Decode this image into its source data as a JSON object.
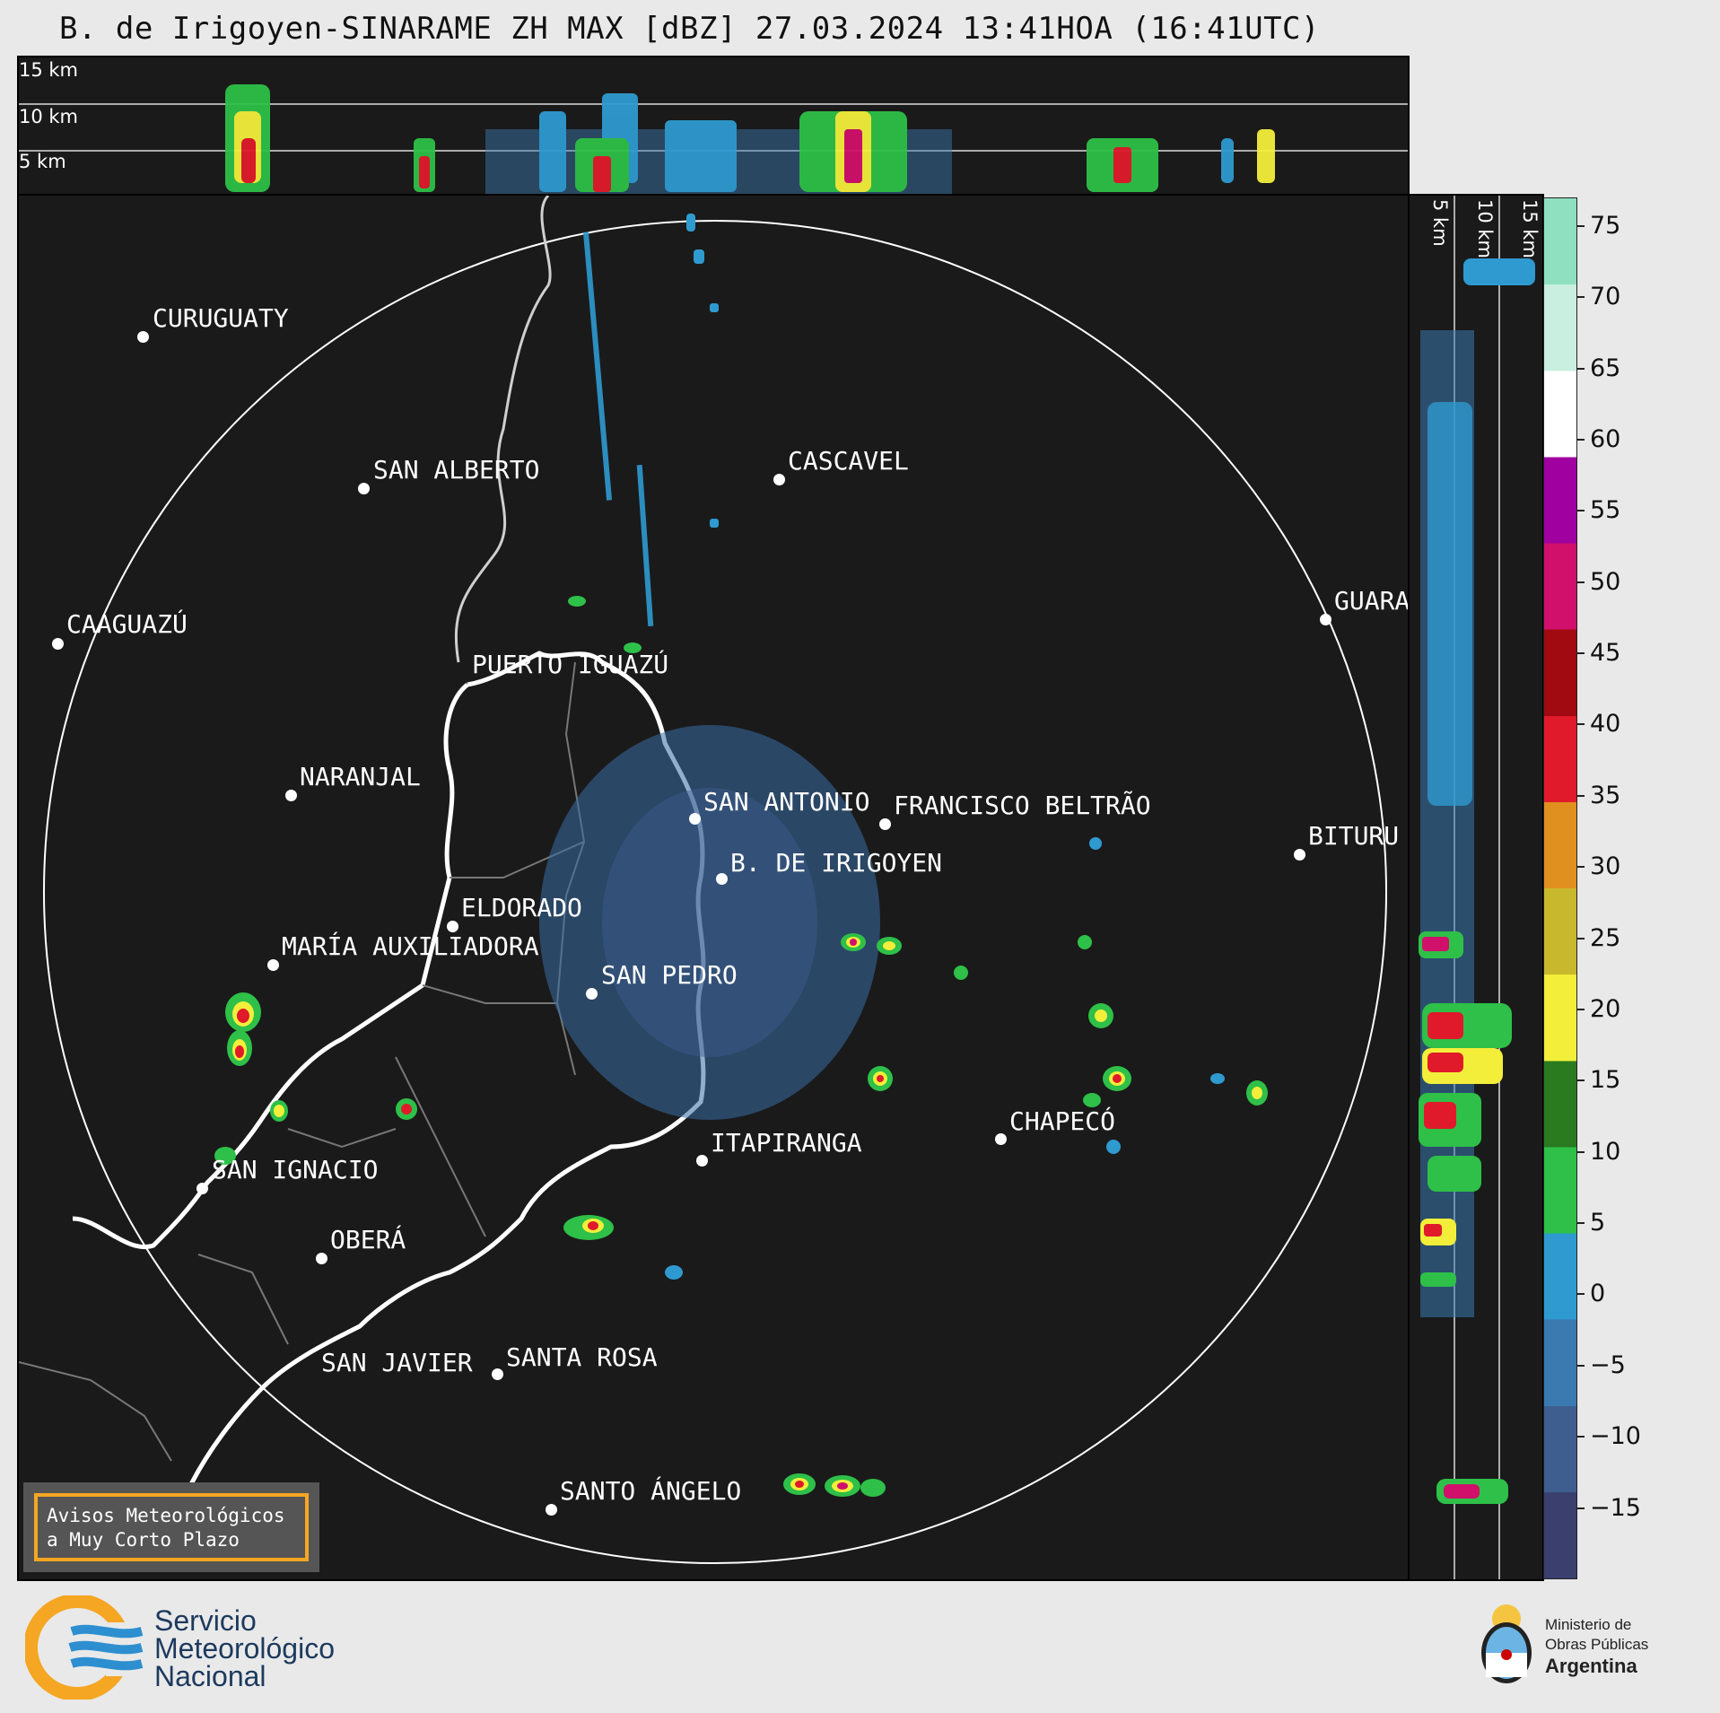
{
  "title": "B. de Irigoyen-SINARAME ZH MAX [dBZ] 27.03.2024 13:41HOA (16:41UTC)",
  "height_labels": [
    "15 km",
    "10 km",
    "5 km"
  ],
  "cities": [
    {
      "name": "CURUGUATY"
    },
    {
      "name": "SAN ALBERTO"
    },
    {
      "name": "CASCAVEL"
    },
    {
      "name": "CAAGUAZÚ"
    },
    {
      "name": "GUARA"
    },
    {
      "name": "PUERTO IGUAZÚ"
    },
    {
      "name": "NARANJAL"
    },
    {
      "name": "SAN ANTONIO"
    },
    {
      "name": "FRANCISCO BELTRÃO"
    },
    {
      "name": "BITURU"
    },
    {
      "name": "B. DE IRIGOYEN"
    },
    {
      "name": "ELDORADO"
    },
    {
      "name": "MARÍA AUXILIADORA"
    },
    {
      "name": "SAN PEDRO"
    },
    {
      "name": "CHAPECÓ"
    },
    {
      "name": "ITAPIRANGA"
    },
    {
      "name": "SAN IGNACIO"
    },
    {
      "name": "OBERÁ"
    },
    {
      "name": "SAN JAVIER"
    },
    {
      "name": "SANTA ROSA"
    },
    {
      "name": "SANTO ÁNGELO"
    }
  ],
  "colorbar": {
    "unit": "dBZ",
    "ticks": [
      "75",
      "70",
      "65",
      "60",
      "55",
      "50",
      "45",
      "40",
      "35",
      "30",
      "25",
      "20",
      "15",
      "10",
      "5",
      "0",
      "−5",
      "−10",
      "−15"
    ],
    "range": [
      -20,
      77
    ],
    "colors": [
      "#3a3f6e",
      "#3d5e8f",
      "#3a7ab0",
      "#2f9ad0",
      "#2ec048",
      "#2a7a20",
      "#f2ee3a",
      "#c7b82e",
      "#e0901e",
      "#e01a2a",
      "#a00a10",
      "#d0106a",
      "#a000a0",
      "#ffffff",
      "#c8efe0",
      "#8fe0c0"
    ]
  },
  "warning": {
    "line1": "Avisos Meteorológicos",
    "line2": "a Muy Corto Plazo"
  },
  "footer": {
    "smn": [
      "Servicio",
      "Meteorológico",
      "Nacional"
    ],
    "ministry": [
      "Ministerio de",
      "Obras Públicas",
      "Argentina"
    ]
  }
}
